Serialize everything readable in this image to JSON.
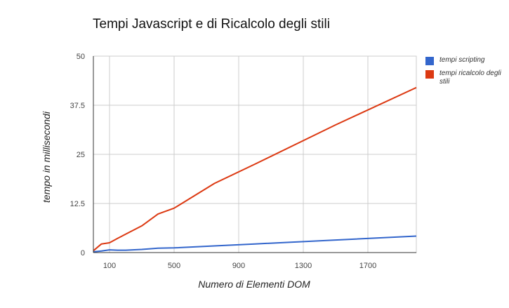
{
  "chart_data": {
    "type": "line",
    "title": "Tempi Javascript e di Ricalcolo degli stili",
    "xlabel": "Numero di Elementi DOM",
    "ylabel": "tempo in millisecondi",
    "xlim": [
      0,
      2000
    ],
    "ylim": [
      0,
      50
    ],
    "x_ticks": [
      100,
      500,
      900,
      1300,
      1700
    ],
    "y_ticks": [
      0,
      12.5,
      25,
      37.5,
      50
    ],
    "y_tick_labels": [
      "0",
      "12.5",
      "25",
      "37.5",
      "50"
    ],
    "grid": true,
    "legend_position": "right",
    "series": [
      {
        "name": "tempi scripting",
        "color": "#3366cc",
        "x": [
          1,
          50,
          100,
          150,
          200,
          300,
          400,
          500,
          750,
          1000,
          1500,
          2000
        ],
        "y": [
          0.2,
          0.4,
          0.7,
          0.6,
          0.6,
          0.8,
          1.1,
          1.2,
          1.7,
          2.2,
          3.2,
          4.2
        ]
      },
      {
        "name": "tempi ricalcolo degli stili",
        "color": "#dc3912",
        "x": [
          1,
          50,
          100,
          150,
          200,
          300,
          400,
          500,
          750,
          1000,
          1500,
          2000
        ],
        "y": [
          0.5,
          2.2,
          2.5,
          3.6,
          4.7,
          6.8,
          9.8,
          11.3,
          17.6,
          22.5,
          32.5,
          42.0
        ]
      }
    ]
  }
}
